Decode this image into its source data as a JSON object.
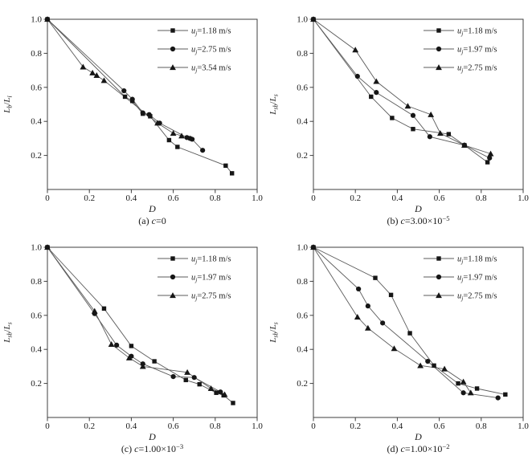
{
  "figure": {
    "background": "#ffffff",
    "styles": {
      "axis_color": "#3f3f3f",
      "line_color": "#5b5b5b",
      "marker_color": "#161616",
      "text_color": "#1a1a1a"
    }
  },
  "chart_data": [
    {
      "id": "a",
      "type": "line",
      "caption": "(a) c=0",
      "caption_rich": [
        {
          "t": "(a) "
        },
        {
          "t": "c",
          "i": true
        },
        {
          "t": "=0"
        }
      ],
      "xlabel": "D",
      "xlabel_rich": [
        {
          "t": "D",
          "i": true
        }
      ],
      "ylabel": "L_b/L_i",
      "ylabel_rich": [
        {
          "t": "L",
          "i": true
        },
        {
          "t": "b",
          "sub": true,
          "i": true
        },
        {
          "t": "/"
        },
        {
          "t": "L",
          "i": true
        },
        {
          "t": "i",
          "sub": true,
          "i": true
        }
      ],
      "xlim": [
        0,
        1
      ],
      "ylim": [
        0,
        1
      ],
      "xticks": [
        0,
        0.2,
        0.4,
        0.6,
        0.8,
        1.0
      ],
      "yticks": [
        0.2,
        0.4,
        0.6,
        0.8,
        1.0
      ],
      "legend_position": "top-right",
      "series": [
        {
          "name": "u_j=1.18 m/s",
          "marker": "square",
          "name_rich": [
            {
              "t": "u",
              "i": true
            },
            {
              "t": "j",
              "sub": true,
              "i": true
            },
            {
              "t": "=1.18 m/s"
            }
          ],
          "points": [
            [
              0,
              1.0
            ],
            [
              0.37,
              0.545
            ],
            [
              0.405,
              0.52
            ],
            [
              0.455,
              0.445
            ],
            [
              0.49,
              0.43
            ],
            [
              0.58,
              0.29
            ],
            [
              0.62,
              0.25
            ],
            [
              0.85,
              0.14
            ],
            [
              0.88,
              0.095
            ]
          ]
        },
        {
          "name": "u_j=2.75 m/s",
          "marker": "circle",
          "name_rich": [
            {
              "t": "u",
              "i": true
            },
            {
              "t": "j",
              "sub": true,
              "i": true
            },
            {
              "t": "=2.75 m/s"
            }
          ],
          "points": [
            [
              0,
              1.0
            ],
            [
              0.365,
              0.58
            ],
            [
              0.405,
              0.53
            ],
            [
              0.455,
              0.45
            ],
            [
              0.485,
              0.44
            ],
            [
              0.535,
              0.39
            ],
            [
              0.665,
              0.305
            ],
            [
              0.68,
              0.3
            ],
            [
              0.69,
              0.295
            ],
            [
              0.74,
              0.23
            ]
          ]
        },
        {
          "name": "u_j=3.54 m/s",
          "marker": "triangle",
          "name_rich": [
            {
              "t": "u",
              "i": true
            },
            {
              "t": "j",
              "sub": true,
              "i": true
            },
            {
              "t": "=3.54 m/s"
            }
          ],
          "points": [
            [
              0,
              1.0
            ],
            [
              0.17,
              0.72
            ],
            [
              0.215,
              0.685
            ],
            [
              0.235,
              0.67
            ],
            [
              0.27,
              0.64
            ],
            [
              0.525,
              0.39
            ],
            [
              0.6,
              0.33
            ],
            [
              0.64,
              0.315
            ]
          ]
        }
      ]
    },
    {
      "id": "b",
      "type": "line",
      "caption": "(b) c=3.00×10⁻⁵",
      "caption_rich": [
        {
          "t": "(b) "
        },
        {
          "t": "c",
          "i": true
        },
        {
          "t": "=3.00×10"
        },
        {
          "t": "−5",
          "sup": true
        }
      ],
      "xlabel": "D",
      "xlabel_rich": [
        {
          "t": "D",
          "i": true
        }
      ],
      "ylabel": "L_sb/L_s",
      "ylabel_rich": [
        {
          "t": "L",
          "i": true
        },
        {
          "t": "sb",
          "sub": true,
          "i": true
        },
        {
          "t": "/"
        },
        {
          "t": "L",
          "i": true
        },
        {
          "t": "s",
          "sub": true,
          "i": true
        }
      ],
      "xlim": [
        0,
        1
      ],
      "ylim": [
        0,
        1
      ],
      "xticks": [
        0,
        0.2,
        0.4,
        0.6,
        0.8,
        1.0
      ],
      "yticks": [
        0.2,
        0.4,
        0.6,
        0.8,
        1.0
      ],
      "legend_position": "top-right",
      "series": [
        {
          "name": "u_j=1.18 m/s",
          "marker": "square",
          "name_rich": [
            {
              "t": "u",
              "i": true
            },
            {
              "t": "j",
              "sub": true,
              "i": true
            },
            {
              "t": "=1.18 m/s"
            }
          ],
          "points": [
            [
              0,
              1.0
            ],
            [
              0.275,
              0.545
            ],
            [
              0.375,
              0.42
            ],
            [
              0.475,
              0.355
            ],
            [
              0.645,
              0.325
            ],
            [
              0.72,
              0.26
            ],
            [
              0.83,
              0.16
            ]
          ]
        },
        {
          "name": "u_j=1.97 m/s",
          "marker": "circle",
          "name_rich": [
            {
              "t": "u",
              "i": true
            },
            {
              "t": "j",
              "sub": true,
              "i": true
            },
            {
              "t": "=1.97 m/s"
            }
          ],
          "points": [
            [
              0,
              1.0
            ],
            [
              0.21,
              0.665
            ],
            [
              0.3,
              0.57
            ],
            [
              0.475,
              0.435
            ],
            [
              0.555,
              0.31
            ],
            [
              0.72,
              0.26
            ],
            [
              0.84,
              0.185
            ]
          ]
        },
        {
          "name": "u_j=2.75 m/s",
          "marker": "triangle",
          "name_rich": [
            {
              "t": "u",
              "i": true
            },
            {
              "t": "j",
              "sub": true,
              "i": true
            },
            {
              "t": "=2.75 m/s"
            }
          ],
          "points": [
            [
              0,
              1.0
            ],
            [
              0.2,
              0.82
            ],
            [
              0.3,
              0.635
            ],
            [
              0.45,
              0.49
            ],
            [
              0.56,
              0.44
            ],
            [
              0.605,
              0.33
            ],
            [
              0.72,
              0.26
            ],
            [
              0.845,
              0.21
            ]
          ]
        }
      ]
    },
    {
      "id": "c",
      "type": "line",
      "caption": "(c) c=1.00×10⁻³",
      "caption_rich": [
        {
          "t": "(c) "
        },
        {
          "t": "c",
          "i": true
        },
        {
          "t": "=1.00×10"
        },
        {
          "t": "−3",
          "sup": true
        }
      ],
      "xlabel": "D",
      "xlabel_rich": [
        {
          "t": "D",
          "i": true
        }
      ],
      "ylabel": "L_sb/L_s",
      "ylabel_rich": [
        {
          "t": "L",
          "i": true
        },
        {
          "t": "sb",
          "sub": true,
          "i": true
        },
        {
          "t": "/"
        },
        {
          "t": "L",
          "i": true
        },
        {
          "t": "s",
          "sub": true,
          "i": true
        }
      ],
      "xlim": [
        0,
        1
      ],
      "ylim": [
        0,
        1
      ],
      "xticks": [
        0,
        0.2,
        0.4,
        0.6,
        0.8,
        1.0
      ],
      "yticks": [
        0.2,
        0.4,
        0.6,
        0.8,
        1.0
      ],
      "legend_position": "top-right",
      "series": [
        {
          "name": "u_j=1.18 m/s",
          "marker": "square",
          "name_rich": [
            {
              "t": "u",
              "i": true
            },
            {
              "t": "j",
              "sub": true,
              "i": true
            },
            {
              "t": "=1.18 m/s"
            }
          ],
          "points": [
            [
              0,
              1.0
            ],
            [
              0.27,
              0.64
            ],
            [
              0.4,
              0.42
            ],
            [
              0.51,
              0.33
            ],
            [
              0.66,
              0.22
            ],
            [
              0.725,
              0.195
            ],
            [
              0.805,
              0.145
            ],
            [
              0.84,
              0.13
            ],
            [
              0.885,
              0.085
            ]
          ]
        },
        {
          "name": "u_j=1.97 m/s",
          "marker": "circle",
          "name_rich": [
            {
              "t": "u",
              "i": true
            },
            {
              "t": "j",
              "sub": true,
              "i": true
            },
            {
              "t": "=1.97 m/s"
            }
          ],
          "points": [
            [
              0,
              1.0
            ],
            [
              0.225,
              0.61
            ],
            [
              0.33,
              0.425
            ],
            [
              0.4,
              0.36
            ],
            [
              0.455,
              0.315
            ],
            [
              0.6,
              0.24
            ],
            [
              0.7,
              0.235
            ],
            [
              0.825,
              0.15
            ]
          ]
        },
        {
          "name": "u_j=2.75 m/s",
          "marker": "triangle",
          "name_rich": [
            {
              "t": "u",
              "i": true
            },
            {
              "t": "j",
              "sub": true,
              "i": true
            },
            {
              "t": "=2.75 m/s"
            }
          ],
          "points": [
            [
              0,
              1.0
            ],
            [
              0.225,
              0.625
            ],
            [
              0.305,
              0.43
            ],
            [
              0.39,
              0.35
            ],
            [
              0.455,
              0.3
            ],
            [
              0.667,
              0.265
            ],
            [
              0.78,
              0.17
            ],
            [
              0.845,
              0.135
            ]
          ]
        }
      ]
    },
    {
      "id": "d",
      "type": "line",
      "caption": "(d) c=1.00×10⁻²",
      "caption_rich": [
        {
          "t": "(d) "
        },
        {
          "t": "c",
          "i": true
        },
        {
          "t": "=1.00×10"
        },
        {
          "t": "−2",
          "sup": true
        }
      ],
      "xlabel": "D",
      "xlabel_rich": [
        {
          "t": "D",
          "i": true
        }
      ],
      "ylabel": "L_sb/L_s",
      "ylabel_rich": [
        {
          "t": "L",
          "i": true
        },
        {
          "t": "sb",
          "sub": true,
          "i": true
        },
        {
          "t": "/"
        },
        {
          "t": "L",
          "i": true
        },
        {
          "t": "s",
          "sub": true,
          "i": true
        }
      ],
      "xlim": [
        0,
        1
      ],
      "ylim": [
        0,
        1
      ],
      "xticks": [
        0,
        0.2,
        0.4,
        0.6,
        0.8,
        1.0
      ],
      "yticks": [
        0.2,
        0.4,
        0.6,
        0.8,
        1.0
      ],
      "legend_position": "top-right",
      "series": [
        {
          "name": "u_j=1.18 m/s",
          "marker": "square",
          "name_rich": [
            {
              "t": "u",
              "i": true
            },
            {
              "t": "j",
              "sub": true,
              "i": true
            },
            {
              "t": "=1.18 m/s"
            }
          ],
          "points": [
            [
              0,
              1.0
            ],
            [
              0.295,
              0.82
            ],
            [
              0.37,
              0.72
            ],
            [
              0.46,
              0.495
            ],
            [
              0.575,
              0.305
            ],
            [
              0.69,
              0.2
            ],
            [
              0.78,
              0.17
            ],
            [
              0.915,
              0.135
            ]
          ]
        },
        {
          "name": "u_j=1.97 m/s",
          "marker": "circle",
          "name_rich": [
            {
              "t": "u",
              "i": true
            },
            {
              "t": "j",
              "sub": true,
              "i": true
            },
            {
              "t": "=1.97 m/s"
            }
          ],
          "points": [
            [
              0,
              1.0
            ],
            [
              0.215,
              0.755
            ],
            [
              0.26,
              0.655
            ],
            [
              0.33,
              0.555
            ],
            [
              0.545,
              0.33
            ],
            [
              0.715,
              0.145
            ],
            [
              0.88,
              0.115
            ]
          ]
        },
        {
          "name": "u_j=2.75 m/s",
          "marker": "triangle",
          "name_rich": [
            {
              "t": "u",
              "i": true
            },
            {
              "t": "j",
              "sub": true,
              "i": true
            },
            {
              "t": "=2.75 m/s"
            }
          ],
          "points": [
            [
              0,
              1.0
            ],
            [
              0.21,
              0.59
            ],
            [
              0.26,
              0.525
            ],
            [
              0.385,
              0.405
            ],
            [
              0.51,
              0.305
            ],
            [
              0.625,
              0.285
            ],
            [
              0.715,
              0.21
            ],
            [
              0.75,
              0.145
            ]
          ]
        }
      ]
    }
  ]
}
